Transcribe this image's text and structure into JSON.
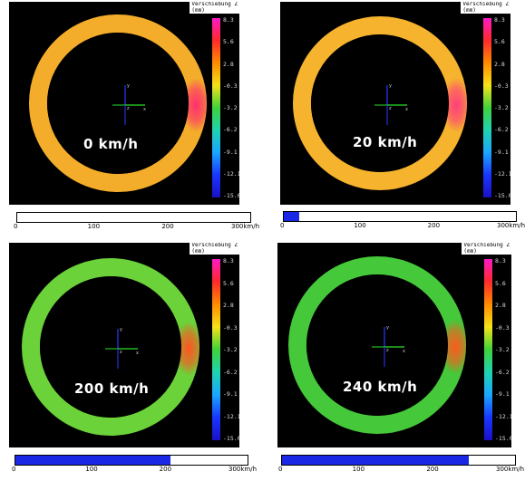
{
  "panels": [
    {
      "speed_label": "0  km/h",
      "speed_kmh": 0,
      "ring_color": "#f4ad2a",
      "hotspot_color": "#ff2f6e"
    },
    {
      "speed_label": "20  km/h",
      "speed_kmh": 20,
      "ring_color": "#f6b32e",
      "hotspot_color": "#ff3f7a"
    },
    {
      "speed_label": "200  km/h",
      "speed_kmh": 200,
      "ring_color": "#6bd23a",
      "hotspot_color": "#ff5522"
    },
    {
      "speed_label": "240  km/h",
      "speed_kmh": 240,
      "ring_color": "#45c83a",
      "hotspot_color": "#ff5a1f"
    }
  ],
  "colorbar": {
    "title_line1": "Verschiebung Z",
    "title_line2": "(mm)",
    "ticks": [
      "8.3",
      "5.6",
      "2.8",
      "-0.3",
      "-3.2",
      "-6.2",
      "-9.1",
      "-12.1",
      "-15.0"
    ],
    "colors": [
      "#ff19c8",
      "#ff2a2a",
      "#ff8a00",
      "#f6e21a",
      "#3fd23a",
      "#1fd3b0",
      "#1aa6ff",
      "#1a36ff",
      "#1a10c8"
    ]
  },
  "speed_bar": {
    "ticks": [
      "0",
      "100",
      "200",
      "300km/h"
    ],
    "max": 300
  },
  "axes": {
    "y_label": "y",
    "x_label": "x",
    "z_label": "z"
  }
}
